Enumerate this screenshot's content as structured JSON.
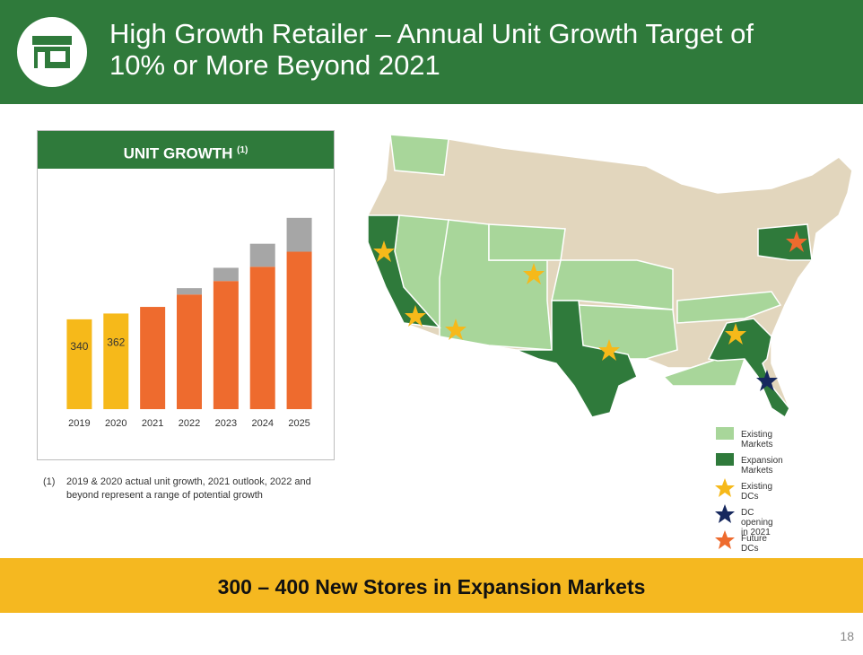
{
  "header": {
    "title": "High Growth Retailer – Annual Unit Growth Target of 10% or More Beyond 2021"
  },
  "chart_data": {
    "type": "bar",
    "stacked": true,
    "title": "UNIT GROWTH",
    "title_note": "(1)",
    "categories": [
      "2019",
      "2020",
      "2021",
      "2022",
      "2023",
      "2024",
      "2025"
    ],
    "series": [
      {
        "color": "#f6b91a",
        "values": [
          340,
          362,
          null,
          null,
          null,
          null,
          null
        ],
        "data_labels": true
      },
      {
        "color": "#ee6b2e",
        "values": [
          null,
          null,
          387,
          434,
          485,
          539,
          596
        ]
      },
      {
        "color": "#a6a6a6",
        "values": [
          null,
          null,
          null,
          24,
          50,
          87,
          128
        ]
      }
    ],
    "ylim": [
      0,
      900
    ]
  },
  "footnote": {
    "marker": "(1)",
    "text": "2019 & 2020 actual unit growth, 2021 outlook, 2022 and beyond represent a range of potential growth"
  },
  "map": {
    "legend": [
      "Existing Markets",
      "Expansion Markets",
      "Existing DCs",
      "DC opening in 2021",
      "Future DCs"
    ]
  },
  "banner": "300 – 400 New Stores in Expansion Markets",
  "page_number": "18"
}
